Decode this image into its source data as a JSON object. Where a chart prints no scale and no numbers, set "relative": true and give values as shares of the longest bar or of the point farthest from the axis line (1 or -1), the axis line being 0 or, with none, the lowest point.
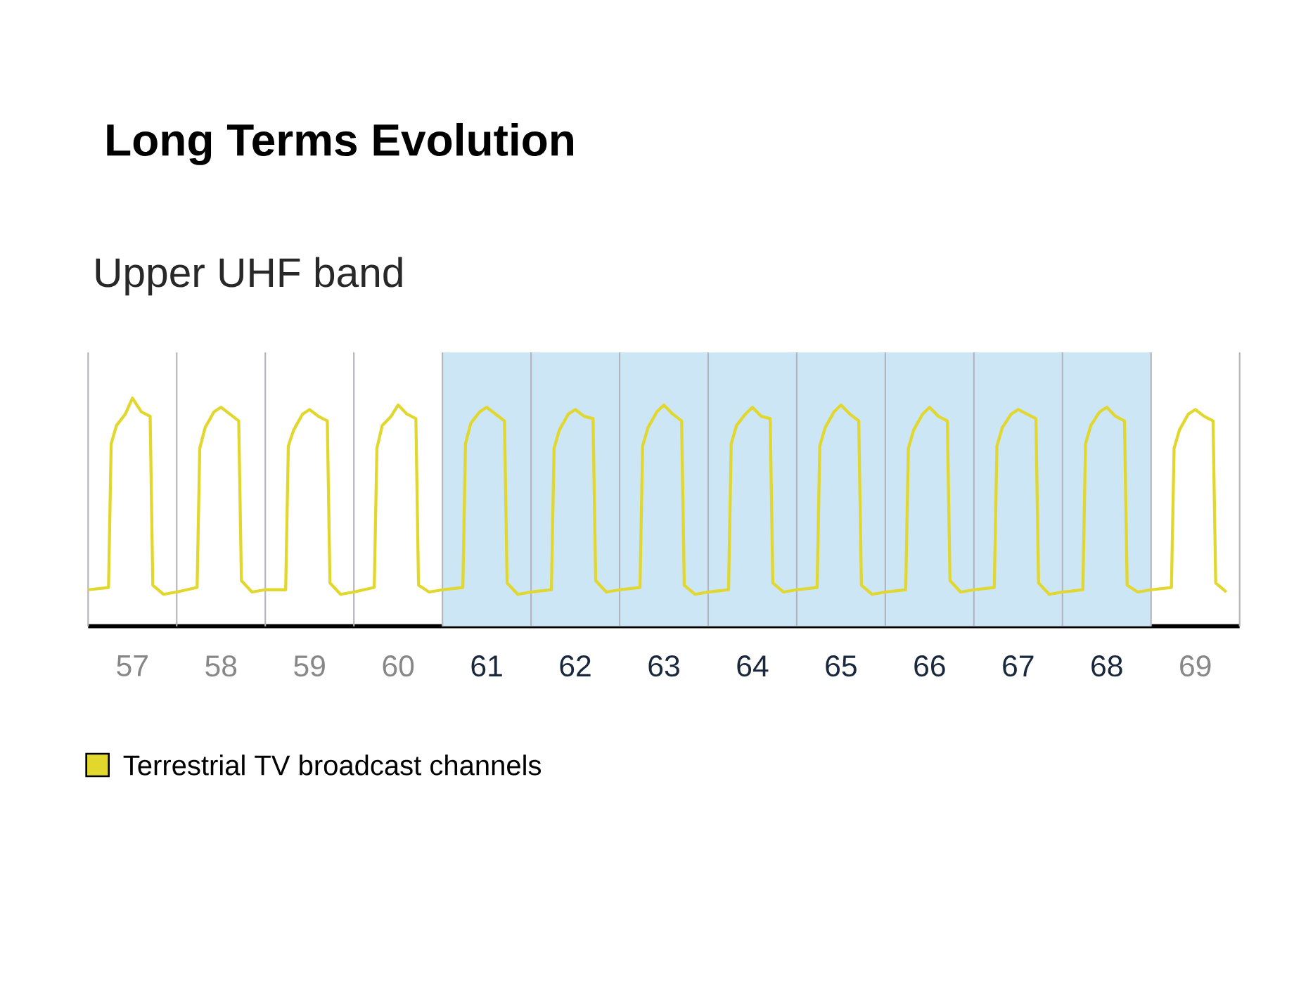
{
  "chart_data": {
    "type": "line",
    "title": "Long Terms Evolution",
    "subtitle": "Upper UHF band",
    "relative": true,
    "xlim": [
      56.5,
      69.5
    ],
    "xticks": [
      57,
      58,
      59,
      60,
      61,
      62,
      63,
      64,
      65,
      66,
      67,
      68,
      69
    ],
    "series": [
      {
        "name": "Terrestrial TV broadcast channels",
        "color": "#e1d72d",
        "x": [
          56.5,
          56.73,
          56.76,
          56.82,
          56.92,
          57.0,
          57.1,
          57.2,
          57.23,
          57.35,
          57.5,
          57.73,
          57.76,
          57.82,
          57.92,
          58.0,
          58.1,
          58.2,
          58.23,
          58.35,
          58.5,
          58.73,
          58.76,
          58.82,
          58.92,
          59.0,
          59.1,
          59.2,
          59.23,
          59.35,
          59.5,
          59.73,
          59.76,
          59.82,
          59.92,
          60.0,
          60.1,
          60.2,
          60.23,
          60.35,
          60.5,
          60.73,
          60.76,
          60.82,
          60.92,
          61.0,
          61.1,
          61.2,
          61.23,
          61.35,
          61.5,
          61.73,
          61.76,
          61.82,
          61.92,
          62.0,
          62.1,
          62.2,
          62.23,
          62.35,
          62.5,
          62.73,
          62.76,
          62.82,
          62.92,
          63.0,
          63.1,
          63.2,
          63.23,
          63.35,
          63.5,
          63.73,
          63.76,
          63.82,
          63.92,
          64.0,
          64.1,
          64.2,
          64.23,
          64.35,
          64.5,
          64.73,
          64.76,
          64.82,
          64.92,
          65.0,
          65.1,
          65.2,
          65.23,
          65.35,
          65.5,
          65.73,
          65.76,
          65.82,
          65.92,
          66.0,
          66.1,
          66.2,
          66.23,
          66.35,
          66.5,
          66.73,
          66.76,
          66.82,
          66.92,
          67.0,
          67.1,
          67.2,
          67.23,
          67.35,
          67.5,
          67.73,
          67.76,
          67.82,
          67.92,
          68.0,
          68.1,
          68.2,
          68.23,
          68.35,
          68.5,
          68.73,
          68.76,
          68.82,
          68.92,
          69.0,
          69.1,
          69.2,
          69.23,
          69.35
        ],
        "values": [
          0.16,
          0.17,
          0.8,
          0.88,
          0.93,
          1,
          0.94,
          0.92,
          0.18,
          0.14,
          0.15,
          0.17,
          0.78,
          0.87,
          0.94,
          0.96,
          0.93,
          0.9,
          0.2,
          0.15,
          0.16,
          0.16,
          0.79,
          0.86,
          0.93,
          0.95,
          0.92,
          0.9,
          0.19,
          0.14,
          0.15,
          0.17,
          0.78,
          0.88,
          0.92,
          0.97,
          0.93,
          0.91,
          0.18,
          0.15,
          0.16,
          0.17,
          0.8,
          0.89,
          0.94,
          0.96,
          0.93,
          0.9,
          0.19,
          0.14,
          0.15,
          0.16,
          0.78,
          0.86,
          0.93,
          0.95,
          0.92,
          0.91,
          0.2,
          0.15,
          0.16,
          0.17,
          0.79,
          0.87,
          0.94,
          0.97,
          0.93,
          0.9,
          0.18,
          0.14,
          0.15,
          0.16,
          0.8,
          0.88,
          0.93,
          0.96,
          0.92,
          0.91,
          0.19,
          0.15,
          0.16,
          0.17,
          0.79,
          0.87,
          0.94,
          0.97,
          0.93,
          0.9,
          0.18,
          0.14,
          0.15,
          0.16,
          0.78,
          0.86,
          0.93,
          0.96,
          0.92,
          0.9,
          0.2,
          0.15,
          0.16,
          0.17,
          0.79,
          0.87,
          0.93,
          0.95,
          0.93,
          0.91,
          0.19,
          0.14,
          0.15,
          0.16,
          0.8,
          0.88,
          0.94,
          0.96,
          0.92,
          0.9,
          0.18,
          0.15,
          0.16,
          0.17,
          0.78,
          0.86,
          0.93,
          0.95,
          0.92,
          0.9,
          0.19,
          0.15
        ]
      }
    ],
    "ref_lines": [
      {
        "axis": "x",
        "value": 56.5,
        "color": "#b4b4be"
      },
      {
        "axis": "x",
        "value": 57.5,
        "color": "#b4b4be"
      },
      {
        "axis": "x",
        "value": 58.5,
        "color": "#b4b4be"
      },
      {
        "axis": "x",
        "value": 59.5,
        "color": "#b4b4be"
      },
      {
        "axis": "x",
        "value": 60.5,
        "color": "#b4b4be"
      },
      {
        "axis": "x",
        "value": 61.5,
        "color": "#b4b4be"
      },
      {
        "axis": "x",
        "value": 62.5,
        "color": "#b4b4be"
      },
      {
        "axis": "x",
        "value": 63.5,
        "color": "#b4b4be"
      },
      {
        "axis": "x",
        "value": 64.5,
        "color": "#b4b4be"
      },
      {
        "axis": "x",
        "value": 65.5,
        "color": "#b4b4be"
      },
      {
        "axis": "x",
        "value": 66.5,
        "color": "#b4b4be"
      },
      {
        "axis": "x",
        "value": 67.5,
        "color": "#b4b4be"
      },
      {
        "axis": "x",
        "value": 68.5,
        "color": "#b4b4be"
      },
      {
        "axis": "x",
        "value": 69.5,
        "color": "#b4b4be"
      }
    ],
    "bands": [
      {
        "axis": "x",
        "from": 60.5,
        "to": 68.5,
        "color": "#cde6f5"
      }
    ],
    "legend": "bottom left",
    "marker": "none",
    "line_style": "solid",
    "grid": false
  }
}
